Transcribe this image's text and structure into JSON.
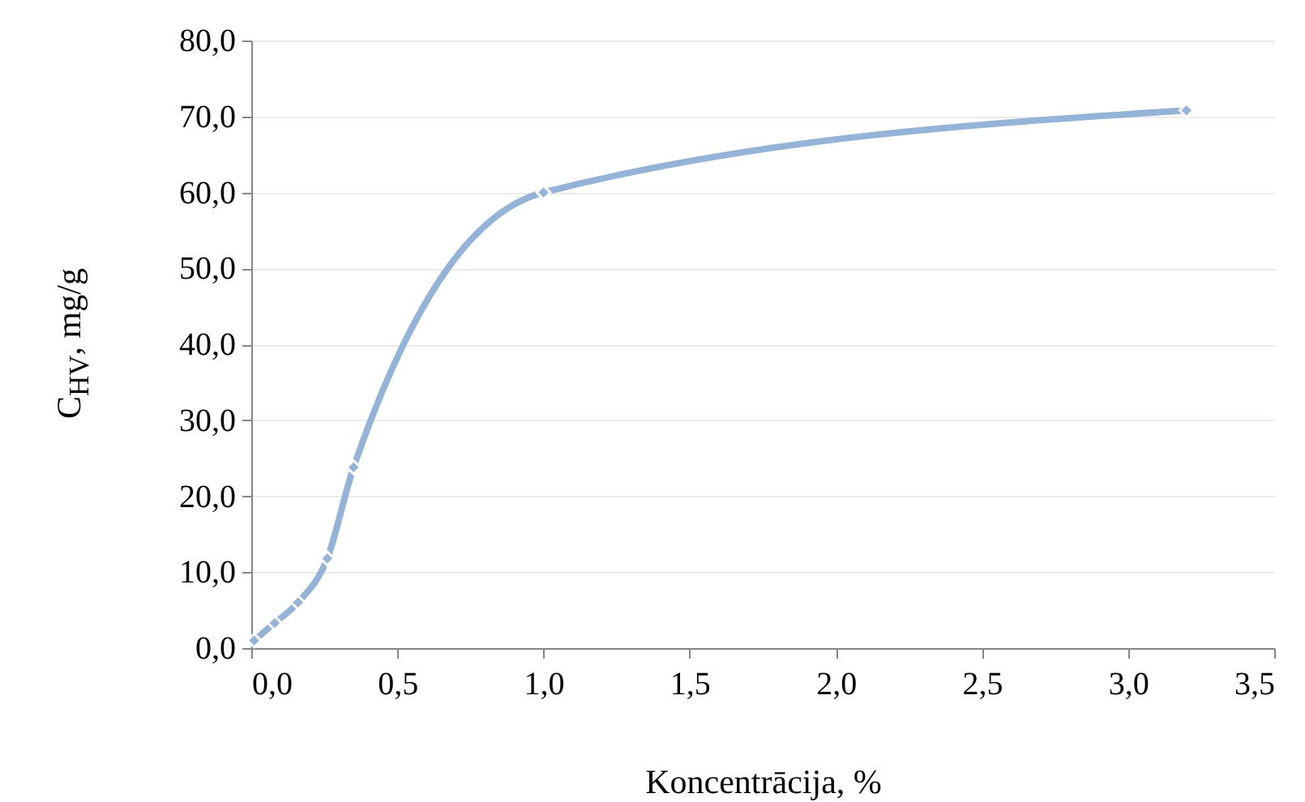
{
  "chart_data": {
    "type": "line",
    "xlabel": "Koncentrācija,  %",
    "ylabel": "C$_{HV}$, mg/g",
    "x": [
      0.01,
      0.08,
      0.16,
      0.26,
      0.35,
      1.0,
      3.2
    ],
    "series": [
      {
        "color": "#95b3d7",
        "values": [
          1.0,
          3.3,
          6.0,
          11.8,
          23.8,
          60.0,
          70.8
        ]
      }
    ],
    "xlim": [
      0,
      3.5
    ],
    "xticks": [
      {
        "value": 0,
        "label": "0,0"
      },
      {
        "value": 0.5,
        "label": "0,5"
      },
      {
        "value": 1,
        "label": "1,0"
      },
      {
        "value": 1.5,
        "label": "1,5"
      },
      {
        "value": 2,
        "label": "2,0"
      },
      {
        "value": 2.5,
        "label": "2,5"
      },
      {
        "value": 3,
        "label": "3,0"
      },
      {
        "value": 3.5,
        "label": "3,5"
      }
    ],
    "ylim": [
      0,
      80
    ],
    "yticks": [
      {
        "value": 0,
        "label": "0,0"
      },
      {
        "value": 10,
        "label": "10,0"
      },
      {
        "value": 20,
        "label": "20,0"
      },
      {
        "value": 30,
        "label": "30,0"
      },
      {
        "value": 40,
        "label": "40,0"
      },
      {
        "value": 50,
        "label": "50,0"
      },
      {
        "value": 60,
        "label": "60,0"
      },
      {
        "value": 70,
        "label": "70,0"
      },
      {
        "value": 80,
        "label": "80,0"
      }
    ],
    "grid": "y",
    "marker": "diamond",
    "line_style": "solid"
  }
}
